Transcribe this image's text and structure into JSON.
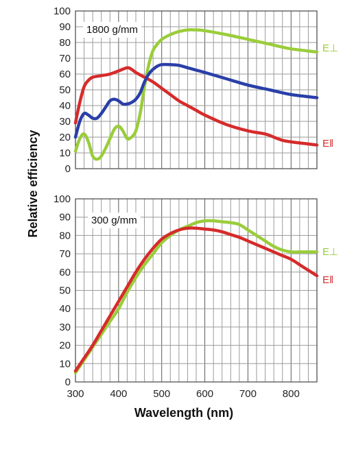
{
  "chart_data": [
    {
      "type": "line",
      "panel_label": "1800 g/mm",
      "ylabel": "Relative efficiency",
      "xlabel": "",
      "xlim": [
        300,
        860
      ],
      "ylim": [
        0,
        100
      ],
      "y_ticks": [
        "0",
        "10",
        "20",
        "30",
        "40",
        "50",
        "60",
        "70",
        "80",
        "90",
        "100"
      ],
      "x_ticks": [],
      "grid": true,
      "series": [
        {
          "name": "E⊥",
          "color": "#9acd3a",
          "x": [
            300,
            310,
            320,
            330,
            340,
            350,
            360,
            370,
            380,
            390,
            400,
            410,
            420,
            430,
            440,
            450,
            460,
            470,
            480,
            490,
            500,
            520,
            540,
            560,
            580,
            600,
            650,
            700,
            750,
            800,
            860
          ],
          "y": [
            11,
            19,
            22,
            17,
            8,
            6,
            8,
            13,
            19,
            25,
            27,
            24,
            19,
            20,
            24,
            35,
            52,
            66,
            75,
            79,
            82,
            85,
            87,
            88,
            88,
            87.5,
            85,
            82,
            79,
            76,
            74
          ]
        },
        {
          "name": "E‖",
          "color": "#d62b2b",
          "x": [
            300,
            310,
            320,
            330,
            340,
            360,
            380,
            400,
            420,
            430,
            440,
            460,
            480,
            500,
            520,
            540,
            560,
            580,
            600,
            650,
            700,
            740,
            760,
            780,
            800,
            860
          ],
          "y": [
            29,
            42,
            52,
            56,
            58,
            59,
            60,
            62,
            64,
            63,
            61,
            58,
            55,
            51,
            47,
            43,
            40,
            37,
            34,
            28,
            24,
            22,
            20,
            18,
            17,
            15
          ]
        },
        {
          "name": "",
          "color": "#2a3fa8",
          "x": [
            300,
            310,
            320,
            330,
            340,
            350,
            360,
            370,
            380,
            390,
            400,
            410,
            420,
            430,
            440,
            450,
            460,
            470,
            480,
            490,
            500,
            520,
            540,
            560,
            580,
            600,
            650,
            700,
            750,
            800,
            860
          ],
          "y": [
            20,
            30,
            35,
            34,
            32,
            32,
            35,
            39,
            43,
            44,
            43,
            41,
            41,
            42,
            44,
            48,
            55,
            60,
            63,
            65,
            66,
            66,
            65.5,
            64,
            62.5,
            61,
            57,
            53,
            50,
            47,
            45
          ]
        }
      ]
    },
    {
      "type": "line",
      "panel_label": "300 g/mm",
      "ylabel": "Relative efficiency",
      "xlabel": "Wavelength (nm)",
      "xlim": [
        300,
        860
      ],
      "ylim": [
        0,
        100
      ],
      "y_ticks": [
        "0",
        "10",
        "20",
        "30",
        "40",
        "50",
        "60",
        "70",
        "80",
        "90",
        "100"
      ],
      "x_ticks": [
        "300",
        "400",
        "500",
        "600",
        "700",
        "800"
      ],
      "grid": true,
      "series": [
        {
          "name": "E⊥",
          "color": "#9acd3a",
          "x": [
            300,
            320,
            340,
            360,
            380,
            400,
            420,
            440,
            460,
            480,
            500,
            520,
            540,
            560,
            580,
            600,
            620,
            640,
            660,
            680,
            700,
            720,
            740,
            760,
            780,
            800,
            820,
            840,
            860
          ],
          "y": [
            5,
            12,
            19,
            26,
            33,
            40,
            49,
            57,
            64,
            70,
            76,
            80,
            83,
            85,
            87,
            88,
            88,
            87.5,
            87,
            86,
            83,
            80,
            77,
            74,
            72,
            71,
            71,
            71,
            71
          ]
        },
        {
          "name": "E‖",
          "color": "#d62b2b",
          "x": [
            300,
            320,
            340,
            360,
            380,
            400,
            420,
            440,
            460,
            480,
            500,
            520,
            540,
            560,
            580,
            600,
            620,
            640,
            660,
            680,
            700,
            720,
            740,
            760,
            780,
            800,
            820,
            840,
            860
          ],
          "y": [
            6,
            13,
            20,
            28,
            36,
            44,
            52,
            60,
            67,
            73,
            78,
            81,
            83,
            84,
            84,
            83.5,
            83,
            82,
            80.5,
            79,
            77,
            75,
            73,
            71,
            69,
            67,
            64,
            61,
            58
          ]
        }
      ]
    }
  ]
}
